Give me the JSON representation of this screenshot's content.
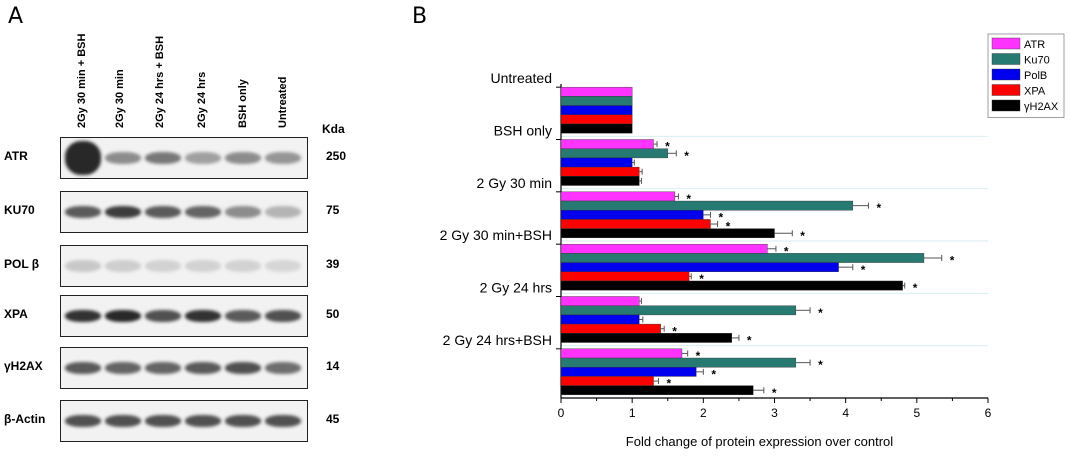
{
  "panel_a": {
    "letter": "A",
    "lanes": [
      "2Gy 30 min + BSH",
      "2Gy 30 min",
      "2Gy 24 hrs + BSH",
      "2Gy 24 hrs",
      "BSH only",
      "Untreated"
    ],
    "kda_header": "Kda",
    "rows": [
      {
        "label": "ATR",
        "kda": "250",
        "intensity": [
          0.95,
          0.45,
          0.55,
          0.35,
          0.45,
          0.4
        ]
      },
      {
        "label": "KU70",
        "kda": "75",
        "intensity": [
          0.7,
          0.85,
          0.7,
          0.65,
          0.45,
          0.25
        ]
      },
      {
        "label": "POL β",
        "kda": "39",
        "intensity": [
          0.15,
          0.12,
          0.1,
          0.1,
          0.1,
          0.08
        ]
      },
      {
        "label": "XPA",
        "kda": "50",
        "intensity": [
          0.9,
          0.95,
          0.75,
          0.9,
          0.7,
          0.75
        ]
      },
      {
        "label": "γH2AX",
        "kda": "14",
        "intensity": [
          0.7,
          0.65,
          0.65,
          0.7,
          0.75,
          0.6
        ]
      },
      {
        "label": "β-Actin",
        "kda": "45",
        "intensity": [
          0.75,
          0.75,
          0.75,
          0.75,
          0.75,
          0.75
        ]
      }
    ]
  },
  "panel_b": {
    "letter": "B"
  },
  "chart_data": {
    "type": "bar",
    "orientation": "horizontal",
    "categories": [
      "Untreated",
      "BSH only",
      "2 Gy 30 min",
      "2 Gy 30 min+BSH",
      "2 Gy 24 hrs",
      "2 Gy 24 hrs+BSH"
    ],
    "series": [
      {
        "name": "ATR",
        "color": "#ff33ff",
        "values": [
          1.0,
          1.3,
          1.6,
          2.9,
          1.1,
          1.7
        ],
        "errors": [
          0,
          0.05,
          0.05,
          0.12,
          0.03,
          0.08
        ],
        "significant": [
          false,
          true,
          true,
          true,
          false,
          true
        ]
      },
      {
        "name": "Ku70",
        "color": "#267a72",
        "values": [
          1.0,
          1.5,
          4.1,
          5.1,
          3.3,
          3.3
        ],
        "errors": [
          0,
          0.12,
          0.22,
          0.25,
          0.2,
          0.2
        ],
        "significant": [
          false,
          true,
          true,
          true,
          true,
          true
        ]
      },
      {
        "name": "PolB",
        "color": "#0000ee",
        "values": [
          1.0,
          1.0,
          2.0,
          3.9,
          1.1,
          1.9
        ],
        "errors": [
          0,
          0.03,
          0.1,
          0.2,
          0.05,
          0.1
        ],
        "significant": [
          false,
          false,
          true,
          true,
          false,
          true
        ]
      },
      {
        "name": "XPA",
        "color": "#ff0000",
        "values": [
          1.0,
          1.1,
          2.1,
          1.8,
          1.4,
          1.3
        ],
        "errors": [
          0,
          0.04,
          0.1,
          0.03,
          0.05,
          0.07
        ],
        "significant": [
          false,
          false,
          true,
          true,
          true,
          true
        ]
      },
      {
        "name": "γH2AX",
        "color": "#000000",
        "values": [
          1.0,
          1.1,
          3.0,
          4.8,
          2.4,
          2.7
        ],
        "errors": [
          0,
          0.03,
          0.25,
          0.03,
          0.1,
          0.15
        ],
        "significant": [
          false,
          false,
          true,
          true,
          true,
          true
        ]
      }
    ],
    "xlabel": "Fold change of protein expression over control",
    "xlim": [
      0,
      6
    ],
    "xticks": [
      "0",
      "1",
      "2",
      "3",
      "4",
      "5",
      "6"
    ],
    "significance_marker": "*",
    "legend_position": "top-right",
    "grid": false
  }
}
